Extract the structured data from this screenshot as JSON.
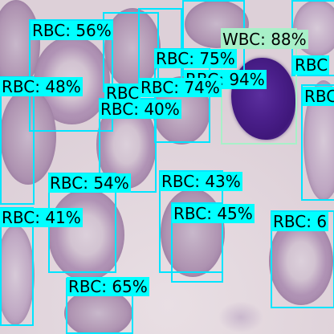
{
  "labels": {
    "rbc56": "RBC: 56%",
    "wbc88": "WBC: 88%",
    "rbc75": "RBC: 75%",
    "rbc_r1": "RBC",
    "rbc48": "RBC: 48%",
    "rbc74": "RBC: 74%",
    "rbc94": "RBC: 94%",
    "rbc_r2": "RBC",
    "rbc40": "RBC: 40%",
    "rbc_hidden": "RBC",
    "rbc54": "RBC: 54%",
    "rbc43": "RBC: 43%",
    "rbc45": "RBC: 45%",
    "rbc41": "RBC: 41%",
    "rbc6": "RBC: 6",
    "rbc65": "RBC: 65%"
  },
  "colors": {
    "rbc_box": "#00e5ff",
    "rbc_label_bg": "#00ffff",
    "wbc_box": "#a8f0c8",
    "wbc_label_bg": "#a8f0c8"
  }
}
